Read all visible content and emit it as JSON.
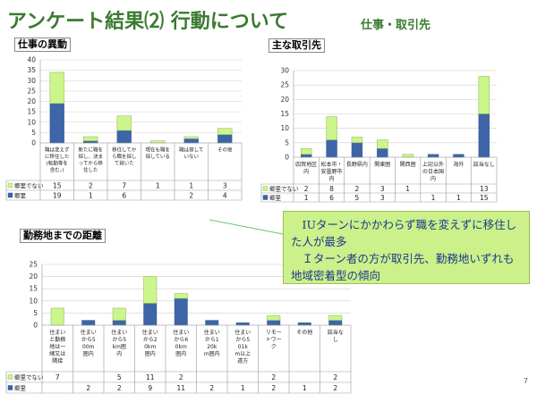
{
  "slide": {
    "title": "アンケート結果⑵ 行動について",
    "subtitle": "仕事・取引先",
    "page_number": "7"
  },
  "callout": {
    "line1": "IUターンにかかわらず職を変えずに移住した人が最多",
    "line2": "Ｉターン者の方が取引先、勤務地いずれも地域密着型の傾向"
  },
  "colors": {
    "series_not_local": "#ccf58c",
    "series_local": "#3e65a8"
  },
  "chart_data": [
    {
      "type": "bar",
      "stacked": true,
      "title": "仕事の異動",
      "ylim": [
        0,
        40
      ],
      "yticks": [
        0,
        5,
        10,
        15,
        20,
        25,
        30,
        35,
        40
      ],
      "categories": [
        "職は変えずに移住した(転勤等を含む。)",
        "新たに職を探し、決まってから移住した",
        "移住してから職を探して就いた",
        "現在も職を探している",
        "職は探していない",
        "その他"
      ],
      "series": [
        {
          "name": "郷里",
          "values": [
            19,
            1,
            6,
            0,
            2,
            4
          ],
          "labels": [
            "19",
            "1",
            "6",
            "",
            "2",
            "4"
          ]
        },
        {
          "name": "郷里でない",
          "values": [
            15,
            2,
            7,
            1,
            1,
            3
          ],
          "labels": [
            "15",
            "2",
            "7",
            "1",
            "1",
            "3"
          ]
        }
      ],
      "grid": true
    },
    {
      "type": "bar",
      "stacked": true,
      "title": "主な取引先",
      "ylim": [
        0,
        30
      ],
      "yticks": [
        0,
        5,
        10,
        15,
        20,
        25,
        30
      ],
      "categories": [
        "四賀地区内",
        "松本市・安曇野市内",
        "長野県内",
        "関東圏",
        "関西圏",
        "上記以外の日本国内",
        "海外",
        "該当なし"
      ],
      "series": [
        {
          "name": "郷里",
          "values": [
            1,
            6,
            5,
            3,
            0,
            1,
            1,
            15
          ],
          "labels": [
            "1",
            "6",
            "5",
            "3",
            "",
            "1",
            "1",
            "15"
          ]
        },
        {
          "name": "郷里でない",
          "values": [
            2,
            8,
            2,
            3,
            1,
            0,
            0,
            13
          ],
          "labels": [
            "2",
            "8",
            "2",
            "3",
            "1",
            "",
            "",
            "13"
          ]
        }
      ],
      "grid": true
    },
    {
      "type": "bar",
      "stacked": true,
      "title": "勤務地までの距離",
      "ylim": [
        0,
        25
      ],
      "yticks": [
        0,
        5,
        10,
        15,
        20,
        25
      ],
      "categories": [
        "住まいと勤務地は一緒又は隣接",
        "住まいから500m圏内",
        "住まいから5km圏内",
        "住まいから20km圏内",
        "住まいから60km圏内",
        "住まいから120km圏内",
        "住まいから501km以上遠方",
        "リモートワーク",
        "その他",
        "該当なし"
      ],
      "series": [
        {
          "name": "郷里",
          "values": [
            0,
            2,
            2,
            9,
            11,
            2,
            1,
            2,
            1,
            2
          ],
          "labels": [
            "",
            "2",
            "2",
            "9",
            "11",
            "2",
            "1",
            "2",
            "1",
            "2"
          ]
        },
        {
          "name": "郷里でない",
          "values": [
            7,
            0,
            5,
            11,
            2,
            0,
            0,
            2,
            0,
            2
          ],
          "labels": [
            "7",
            "",
            "5",
            "11",
            "2",
            "",
            "",
            "2",
            "",
            "2"
          ]
        }
      ],
      "grid": true
    }
  ]
}
